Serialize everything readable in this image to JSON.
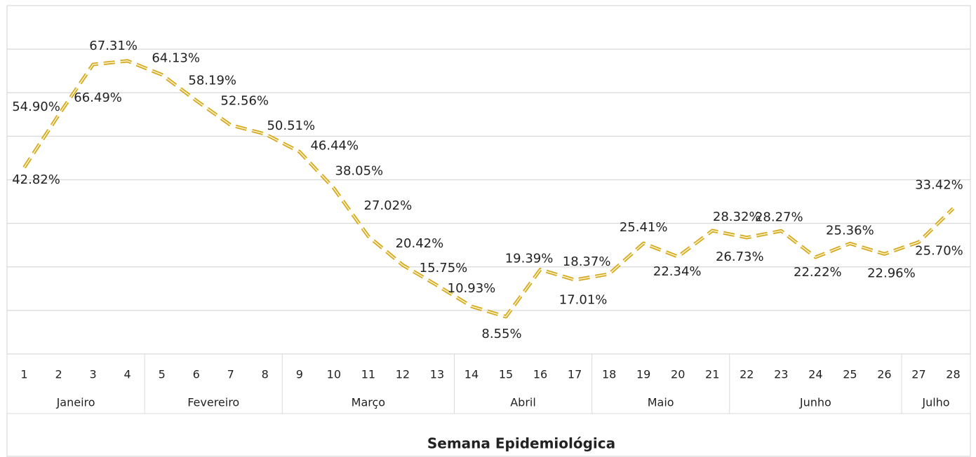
{
  "chart_data": {
    "type": "line",
    "x_label": "Semana Epidemiológica",
    "categories": [
      "1",
      "2",
      "3",
      "4",
      "5",
      "6",
      "7",
      "8",
      "9",
      "10",
      "11",
      "12",
      "13",
      "14",
      "15",
      "16",
      "17",
      "18",
      "19",
      "20",
      "21",
      "22",
      "23",
      "24",
      "25",
      "26",
      "27",
      "28"
    ],
    "groups": [
      {
        "label": "Janeiro",
        "count": 4
      },
      {
        "label": "Fevereiro",
        "count": 4
      },
      {
        "label": "Março",
        "count": 5
      },
      {
        "label": "Abril",
        "count": 4
      },
      {
        "label": "Maio",
        "count": 4
      },
      {
        "label": "Junho",
        "count": 5
      },
      {
        "label": "Julho",
        "count": 2
      }
    ],
    "series": [
      {
        "color": "#d4a81c",
        "values": [
          42.82,
          54.9,
          66.49,
          67.31,
          64.13,
          58.19,
          52.56,
          50.51,
          46.44,
          38.05,
          27.02,
          20.42,
          15.75,
          10.93,
          8.55,
          19.39,
          17.01,
          18.37,
          25.41,
          22.34,
          28.32,
          26.73,
          28.27,
          22.22,
          25.36,
          22.96,
          25.7,
          33.42
        ],
        "value_labels": [
          "42.82%",
          "54.90%",
          "66.49%",
          "67.31%",
          "64.13%",
          "58.19%",
          "52.56%",
          "50.51%",
          "46.44%",
          "38.05%",
          "27.02%",
          "20.42%",
          "15.75%",
          "10.93%",
          "8.55%",
          "19.39%",
          "17.01%",
          "18.37%",
          "25.41%",
          "22.34%",
          "28.32%",
          "26.73%",
          "28.27%",
          "22.22%",
          "25.36%",
          "22.96%",
          "25.70%",
          "33.42%"
        ]
      }
    ],
    "ylim": [
      0,
      80
    ],
    "yticks": [
      0,
      10,
      20,
      30,
      40,
      50,
      60,
      70
    ],
    "grid": true
  }
}
